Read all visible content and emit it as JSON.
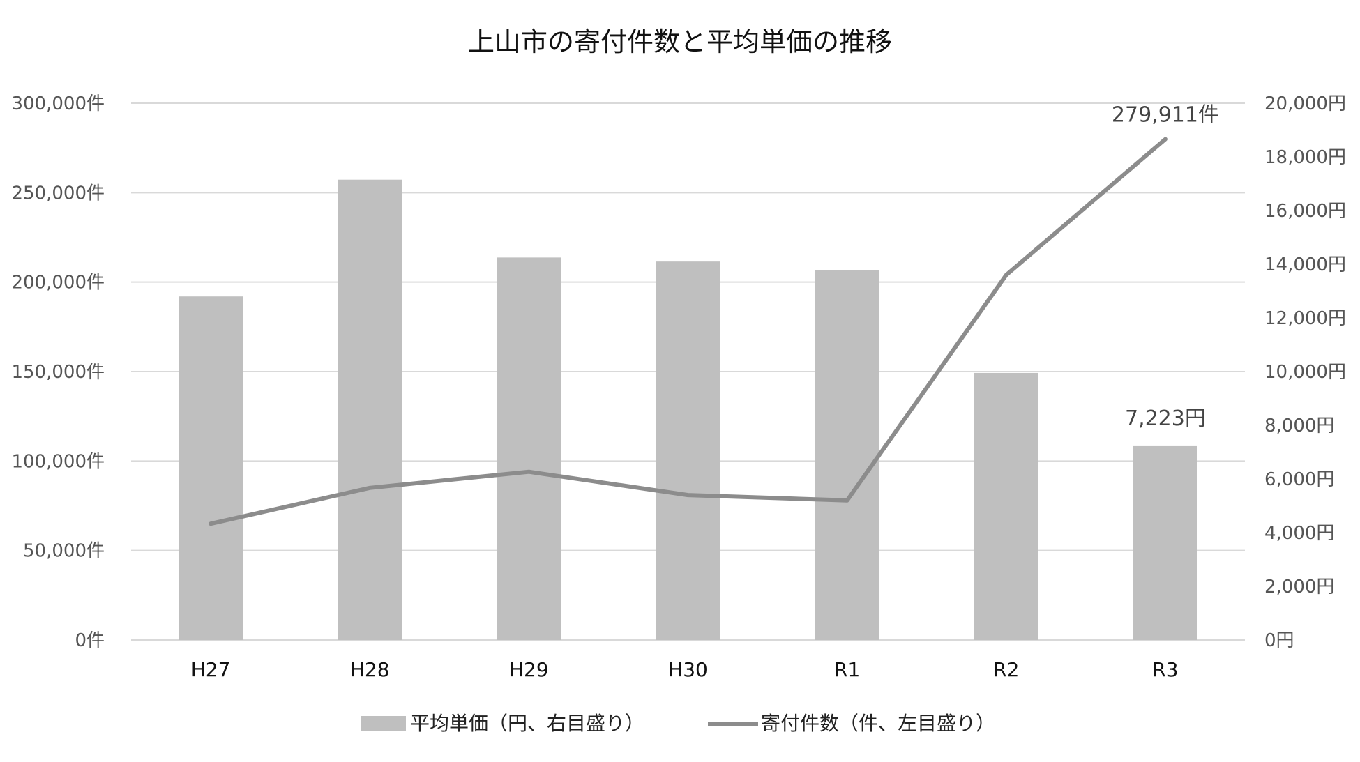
{
  "chart_data": {
    "type": "bar+line",
    "title": "上山市の寄付件数と平均単価の推移",
    "categories": [
      "H27",
      "H28",
      "H29",
      "H30",
      "R1",
      "R2",
      "R3"
    ],
    "series": [
      {
        "name": "平均単価（円、右目盛り）",
        "type": "bar",
        "axis": "right",
        "values": [
          12800,
          17150,
          14250,
          14100,
          13770,
          9950,
          7223
        ]
      },
      {
        "name": "寄付件数（件、左目盛り）",
        "type": "line",
        "axis": "left",
        "values": [
          65000,
          85000,
          94000,
          81000,
          78000,
          204000,
          279911
        ]
      }
    ],
    "left_axis": {
      "ylim": [
        0,
        300000
      ],
      "ticks": [
        0,
        50000,
        100000,
        150000,
        200000,
        250000,
        300000
      ],
      "tick_labels": [
        "0件",
        "50,000件",
        "100,000件",
        "150,000件",
        "200,000件",
        "250,000件",
        "300,000件"
      ]
    },
    "right_axis": {
      "ylim": [
        0,
        20000
      ],
      "ticks": [
        0,
        2000,
        4000,
        6000,
        8000,
        10000,
        12000,
        14000,
        16000,
        18000,
        20000
      ],
      "tick_labels": [
        "0円",
        "2,000円",
        "4,000円",
        "6,000円",
        "8,000円",
        "10,000円",
        "12,000円",
        "14,000円",
        "16,000円",
        "18,000円",
        "20,000円"
      ]
    },
    "annotations": [
      {
        "series": 1,
        "index": 6,
        "text": "279,911件"
      },
      {
        "series": 0,
        "index": 6,
        "text": "7,223円"
      }
    ],
    "grid": true,
    "legend_position": "bottom",
    "colors": {
      "bar": "#bfbfbf",
      "line": "#8c8c8c",
      "grid": "#d9d9d9"
    }
  }
}
